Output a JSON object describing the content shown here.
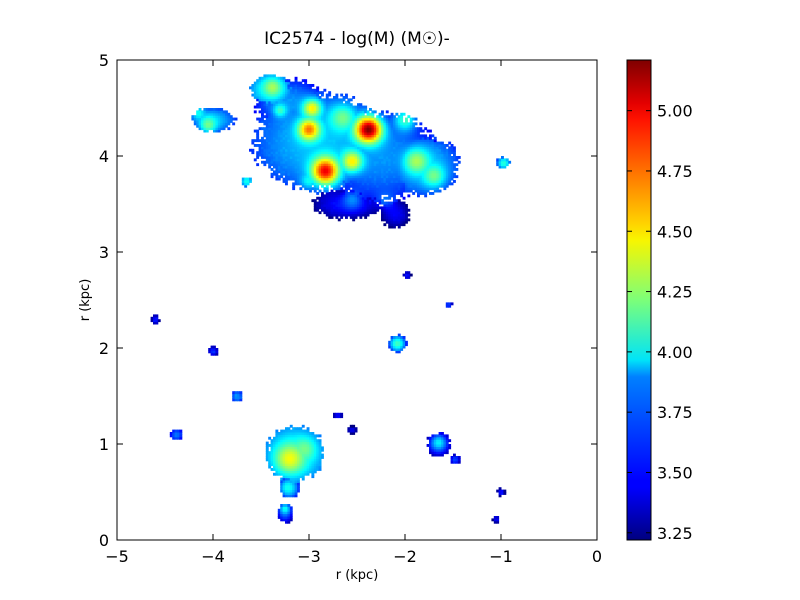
{
  "chart_data": {
    "type": "heatmap",
    "title": "IC2574 - log(M) (M☉)-",
    "xlabel": "r (kpc)",
    "ylabel": "r (kpc)",
    "xlim": [
      -5,
      0
    ],
    "ylim": [
      0,
      5
    ],
    "x_ticks": [
      -5,
      -4,
      -3,
      -2,
      -1,
      0
    ],
    "x_tick_labels": [
      "−5",
      "−4",
      "−3",
      "−2",
      "−1",
      "0"
    ],
    "y_ticks": [
      0,
      1,
      2,
      3,
      4,
      5
    ],
    "y_tick_labels": [
      "0",
      "1",
      "2",
      "3",
      "4",
      "5"
    ],
    "colorbar": {
      "colormap": "jet",
      "range": [
        3.22,
        5.21
      ],
      "ticks": [
        3.25,
        3.5,
        3.75,
        4.0,
        4.25,
        4.5,
        4.75,
        5.0
      ],
      "tick_labels": [
        "3.25",
        "3.50",
        "3.75",
        "4.00",
        "4.25",
        "4.50",
        "4.75",
        "5.00"
      ]
    },
    "grid": false,
    "regions": [
      {
        "x": -2.9,
        "y": 4.15,
        "rx": 0.65,
        "ry": 0.5,
        "value": 3.85
      },
      {
        "x": -2.25,
        "y": 4.0,
        "rx": 0.55,
        "ry": 0.45,
        "value": 3.75
      },
      {
        "x": -1.8,
        "y": 3.9,
        "rx": 0.35,
        "ry": 0.3,
        "value": 3.85
      },
      {
        "x": -2.6,
        "y": 3.5,
        "rx": 0.35,
        "ry": 0.15,
        "value": 3.5
      },
      {
        "x": -3.2,
        "y": 4.55,
        "rx": 0.35,
        "ry": 0.25,
        "value": 3.75
      },
      {
        "x": -3.4,
        "y": 4.7,
        "rx": 0.2,
        "ry": 0.15,
        "value": 4.0
      },
      {
        "x": -2.1,
        "y": 3.4,
        "rx": 0.15,
        "ry": 0.15,
        "value": 3.45
      },
      {
        "x": -4.0,
        "y": 4.38,
        "rx": 0.22,
        "ry": 0.12,
        "value": 3.85
      },
      {
        "x": -3.15,
        "y": 0.9,
        "rx": 0.3,
        "ry": 0.28,
        "value": 4.0
      },
      {
        "x": -3.2,
        "y": 0.55,
        "rx": 0.1,
        "ry": 0.12,
        "value": 3.7
      },
      {
        "x": -3.25,
        "y": 0.28,
        "rx": 0.08,
        "ry": 0.1,
        "value": 3.6
      },
      {
        "x": -1.65,
        "y": 1.0,
        "rx": 0.12,
        "ry": 0.12,
        "value": 3.6
      },
      {
        "x": -2.08,
        "y": 2.05,
        "rx": 0.09,
        "ry": 0.09,
        "value": 3.7
      },
      {
        "x": -0.98,
        "y": 3.93,
        "rx": 0.07,
        "ry": 0.06,
        "value": 3.75
      },
      {
        "x": -3.65,
        "y": 3.74,
        "rx": 0.05,
        "ry": 0.05,
        "value": 3.9
      },
      {
        "x": -4.38,
        "y": 1.1,
        "rx": 0.06,
        "ry": 0.06,
        "value": 3.7
      },
      {
        "x": -4.0,
        "y": 1.97,
        "rx": 0.05,
        "ry": 0.05,
        "value": 3.55
      },
      {
        "x": -3.75,
        "y": 1.5,
        "rx": 0.06,
        "ry": 0.06,
        "value": 3.75
      },
      {
        "x": -4.6,
        "y": 2.3,
        "rx": 0.04,
        "ry": 0.05,
        "value": 3.5
      },
      {
        "x": -1.48,
        "y": 0.84,
        "rx": 0.05,
        "ry": 0.05,
        "value": 3.6
      },
      {
        "x": -1.0,
        "y": 0.5,
        "rx": 0.04,
        "ry": 0.04,
        "value": 3.5
      },
      {
        "x": -1.05,
        "y": 0.22,
        "rx": 0.04,
        "ry": 0.04,
        "value": 3.45
      },
      {
        "x": -1.55,
        "y": 2.45,
        "rx": 0.04,
        "ry": 0.03,
        "value": 3.6
      },
      {
        "x": -1.98,
        "y": 2.76,
        "rx": 0.04,
        "ry": 0.04,
        "value": 3.5
      },
      {
        "x": -2.55,
        "y": 1.15,
        "rx": 0.05,
        "ry": 0.04,
        "value": 3.45
      },
      {
        "x": -2.7,
        "y": 1.3,
        "rx": 0.05,
        "ry": 0.03,
        "value": 3.5
      }
    ],
    "peaks": [
      {
        "x": -2.38,
        "y": 4.28,
        "sigma": 0.1,
        "value": 5.21
      },
      {
        "x": -2.83,
        "y": 3.85,
        "sigma": 0.1,
        "value": 5.0
      },
      {
        "x": -3.0,
        "y": 4.28,
        "sigma": 0.08,
        "value": 4.75
      },
      {
        "x": -2.97,
        "y": 4.5,
        "sigma": 0.07,
        "value": 4.5
      },
      {
        "x": -2.55,
        "y": 3.95,
        "sigma": 0.08,
        "value": 4.5
      },
      {
        "x": -1.88,
        "y": 3.95,
        "sigma": 0.09,
        "value": 4.3
      },
      {
        "x": -1.7,
        "y": 3.8,
        "sigma": 0.08,
        "value": 4.2
      },
      {
        "x": -2.0,
        "y": 4.38,
        "sigma": 0.08,
        "value": 4.1
      },
      {
        "x": -2.65,
        "y": 4.4,
        "sigma": 0.1,
        "value": 4.2
      },
      {
        "x": -3.38,
        "y": 4.72,
        "sigma": 0.06,
        "value": 4.3
      },
      {
        "x": -3.3,
        "y": 4.48,
        "sigma": 0.05,
        "value": 4.1
      },
      {
        "x": -4.05,
        "y": 4.33,
        "sigma": 0.06,
        "value": 4.2
      },
      {
        "x": -4.15,
        "y": 4.45,
        "sigma": 0.05,
        "value": 4.0
      },
      {
        "x": -3.2,
        "y": 0.85,
        "sigma": 0.1,
        "value": 4.45
      },
      {
        "x": -3.05,
        "y": 0.95,
        "sigma": 0.08,
        "value": 4.2
      },
      {
        "x": -3.22,
        "y": 0.55,
        "sigma": 0.06,
        "value": 4.0
      },
      {
        "x": -3.25,
        "y": 0.33,
        "sigma": 0.04,
        "value": 4.0
      },
      {
        "x": -2.08,
        "y": 2.05,
        "sigma": 0.05,
        "value": 4.1
      },
      {
        "x": -0.97,
        "y": 3.93,
        "sigma": 0.04,
        "value": 4.05
      },
      {
        "x": -1.65,
        "y": 1.02,
        "sigma": 0.05,
        "value": 3.95
      },
      {
        "x": -3.65,
        "y": 3.74,
        "sigma": 0.03,
        "value": 4.0
      },
      {
        "x": -2.2,
        "y": 3.55,
        "sigma": 0.07,
        "value": 3.7
      },
      {
        "x": -2.55,
        "y": 3.55,
        "sigma": 0.07,
        "value": 3.75
      },
      {
        "x": -3.0,
        "y": 3.75,
        "sigma": 0.06,
        "value": 4.0
      }
    ]
  }
}
